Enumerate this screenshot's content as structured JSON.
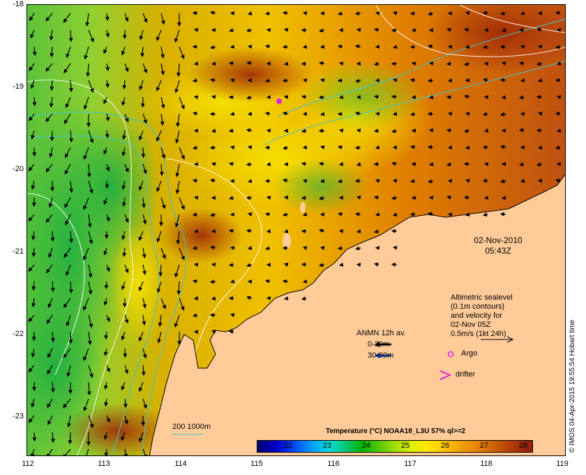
{
  "axes": {
    "x_ticks": [
      "112",
      "113",
      "114",
      "115",
      "116",
      "117",
      "118",
      "119"
    ],
    "y_ticks": [
      "-18",
      "-19",
      "-20",
      "-21",
      "-22",
      "-23"
    ]
  },
  "timestamp": {
    "date": "02-Nov-2010",
    "time": "05:43Z"
  },
  "altimetry_note": {
    "line1": "Altimetric sealevel",
    "line2": "(0.1m contours)",
    "line3": "and velocity for",
    "line4": "02-Nov 05Z",
    "line5": "0.5m/s (1kt 24h)"
  },
  "anmn_legend": {
    "title": "ANMN 12h av.",
    "shallow": "0-30m",
    "deep": "30-80m",
    "shallow_color": "#000000",
    "deep_color": "#0030c0"
  },
  "markers": {
    "argo": "Argo",
    "drifter": "drifter",
    "argo_color": "#e020e0",
    "drifter_color": "#e020e0"
  },
  "bathymetry_label": "200  1000m",
  "bathymetry_color": "#40c8c8",
  "colorbar": {
    "title": "Temperature (°C) NOAA18_L3U 57% ql>=2",
    "ticks": [
      "22",
      "23",
      "24",
      "25",
      "26",
      "27",
      "28"
    ]
  },
  "credit": "© IMOS 04-Apr-2015 19:55:54 Hobart time",
  "colors": {
    "land": "#ffcc99",
    "frame": "#000000"
  }
}
